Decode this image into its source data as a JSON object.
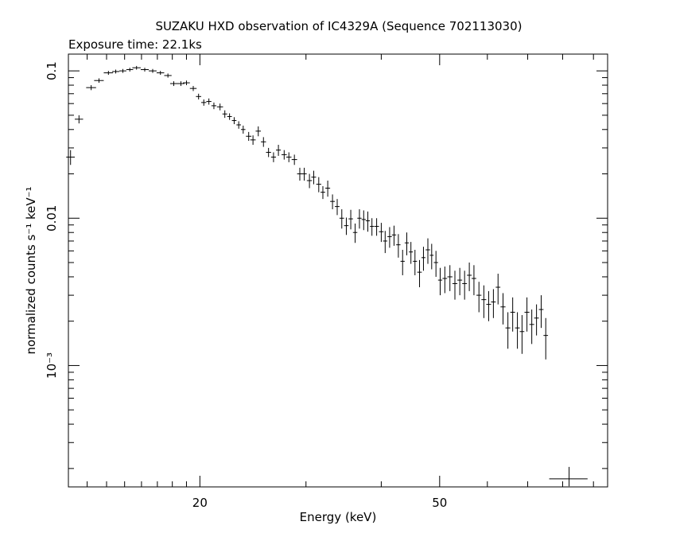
{
  "chart_data": {
    "type": "scatter",
    "title": "SUZAKU HXD observation of IC4329A (Sequence 702113030)",
    "subtitle": "Exposure time: 22.1ks",
    "xlabel": "Energy (keV)",
    "ylabel": "normalized counts s⁻¹ keV⁻¹",
    "x_scale": "log",
    "y_scale": "log",
    "xlim": [
      12.1,
      95
    ],
    "ylim": [
      0.00015,
      0.13
    ],
    "x_ticks_labeled": [
      "20",
      "50"
    ],
    "y_ticks_labeled": [
      "0.1",
      "0.01",
      "10⁻³"
    ],
    "grid": false,
    "series": [
      {
        "x": [
          12.2,
          12.6,
          13.2,
          13.6,
          14.1,
          14.5,
          14.9,
          15.3,
          15.7,
          16.2,
          16.7,
          17.2,
          17.7,
          18.1,
          18.6,
          19.0,
          19.5,
          19.9,
          20.3,
          20.7,
          21.1,
          21.6,
          22.0,
          22.4,
          22.8,
          23.2,
          23.6,
          24.1,
          24.5,
          25.0,
          25.5,
          26.0,
          26.5,
          27.0,
          27.6,
          28.1,
          28.7,
          29.3,
          29.8,
          30.4,
          30.9,
          31.5,
          32.0,
          32.6,
          33.2,
          33.8,
          34.4,
          35.0,
          35.6,
          36.2,
          36.8,
          37.4,
          38.0,
          38.6,
          39.3,
          40.0,
          40.6,
          41.3,
          42.0,
          42.7,
          43.4,
          44.1,
          44.8,
          45.5,
          46.3,
          47.0,
          47.8,
          48.5,
          49.3,
          50.1,
          51.0,
          52.0,
          53.0,
          54.0,
          55.0,
          56.0,
          57.0,
          58.1,
          59.2,
          60.3,
          61.4,
          62.5,
          63.7,
          64.9,
          66.1,
          67.3,
          68.5,
          69.8,
          71.1,
          72.4,
          73.7,
          75.0
        ],
        "y": [
          0.026,
          0.047,
          0.077,
          0.086,
          0.097,
          0.099,
          0.1,
          0.102,
          0.105,
          0.102,
          0.1,
          0.097,
          0.093,
          0.082,
          0.082,
          0.083,
          0.076,
          0.067,
          0.061,
          0.062,
          0.058,
          0.057,
          0.051,
          0.049,
          0.046,
          0.043,
          0.04,
          0.036,
          0.034,
          0.039,
          0.033,
          0.028,
          0.026,
          0.029,
          0.027,
          0.026,
          0.025,
          0.02,
          0.02,
          0.018,
          0.019,
          0.017,
          0.015,
          0.016,
          0.013,
          0.012,
          0.01,
          0.0089,
          0.0099,
          0.008,
          0.01,
          0.0098,
          0.0096,
          0.0088,
          0.0088,
          0.0081,
          0.007,
          0.0075,
          0.0077,
          0.0066,
          0.0051,
          0.0068,
          0.0059,
          0.0051,
          0.0043,
          0.0054,
          0.0061,
          0.0056,
          0.005,
          0.0038,
          0.0039,
          0.004,
          0.0036,
          0.0038,
          0.0036,
          0.0041,
          0.0039,
          0.003,
          0.0028,
          0.0026,
          0.0027,
          0.0034,
          0.0025,
          0.0018,
          0.0023,
          0.0018,
          0.0017,
          0.0023,
          0.0019,
          0.0021,
          0.0024,
          0.0016
        ],
        "xerr": [
          0.2,
          0.2,
          0.25,
          0.25,
          0.25,
          0.2,
          0.2,
          0.2,
          0.25,
          0.25,
          0.25,
          0.25,
          0.25,
          0.25,
          0.25,
          0.25,
          0.25,
          0.2,
          0.2,
          0.2,
          0.2,
          0.25,
          0.2,
          0.2,
          0.2,
          0.2,
          0.2,
          0.25,
          0.25,
          0.25,
          0.25,
          0.25,
          0.25,
          0.25,
          0.28,
          0.28,
          0.3,
          0.3,
          0.28,
          0.3,
          0.28,
          0.3,
          0.28,
          0.3,
          0.3,
          0.3,
          0.3,
          0.3,
          0.3,
          0.3,
          0.3,
          0.3,
          0.3,
          0.3,
          0.35,
          0.35,
          0.33,
          0.35,
          0.35,
          0.35,
          0.35,
          0.35,
          0.35,
          0.35,
          0.4,
          0.35,
          0.4,
          0.35,
          0.4,
          0.4,
          0.45,
          0.5,
          0.5,
          0.5,
          0.5,
          0.5,
          0.5,
          0.55,
          0.55,
          0.55,
          0.55,
          0.55,
          0.6,
          0.6,
          0.6,
          0.6,
          0.6,
          0.65,
          0.65,
          0.65,
          0.65,
          0.65
        ],
        "yerr": [
          0.003,
          0.003,
          0.003,
          0.003,
          0.003,
          0.003,
          0.003,
          0.003,
          0.003,
          0.003,
          0.003,
          0.003,
          0.003,
          0.003,
          0.003,
          0.003,
          0.003,
          0.003,
          0.003,
          0.003,
          0.003,
          0.003,
          0.003,
          0.0025,
          0.0025,
          0.0025,
          0.0025,
          0.0025,
          0.0025,
          0.003,
          0.0025,
          0.002,
          0.002,
          0.0025,
          0.002,
          0.002,
          0.002,
          0.002,
          0.002,
          0.002,
          0.002,
          0.002,
          0.0015,
          0.002,
          0.0015,
          0.0015,
          0.0015,
          0.0012,
          0.0015,
          0.0012,
          0.0015,
          0.0015,
          0.0015,
          0.0012,
          0.0012,
          0.0012,
          0.0012,
          0.0012,
          0.0012,
          0.0012,
          0.001,
          0.0012,
          0.001,
          0.001,
          0.0009,
          0.001,
          0.0012,
          0.0011,
          0.001,
          0.0008,
          0.0008,
          0.0008,
          0.0008,
          0.0008,
          0.0008,
          0.0009,
          0.0009,
          0.0007,
          0.0007,
          0.0006,
          0.0006,
          0.0008,
          0.0006,
          0.0005,
          0.0006,
          0.0005,
          0.0005,
          0.0006,
          0.0005,
          0.0005,
          0.0006,
          0.0005
        ]
      },
      {
        "x": [
          82.0
        ],
        "y": [
          0.00017
        ],
        "xerr": [
          6.0
        ],
        "yerr": [
          3.5e-05
        ]
      }
    ]
  }
}
